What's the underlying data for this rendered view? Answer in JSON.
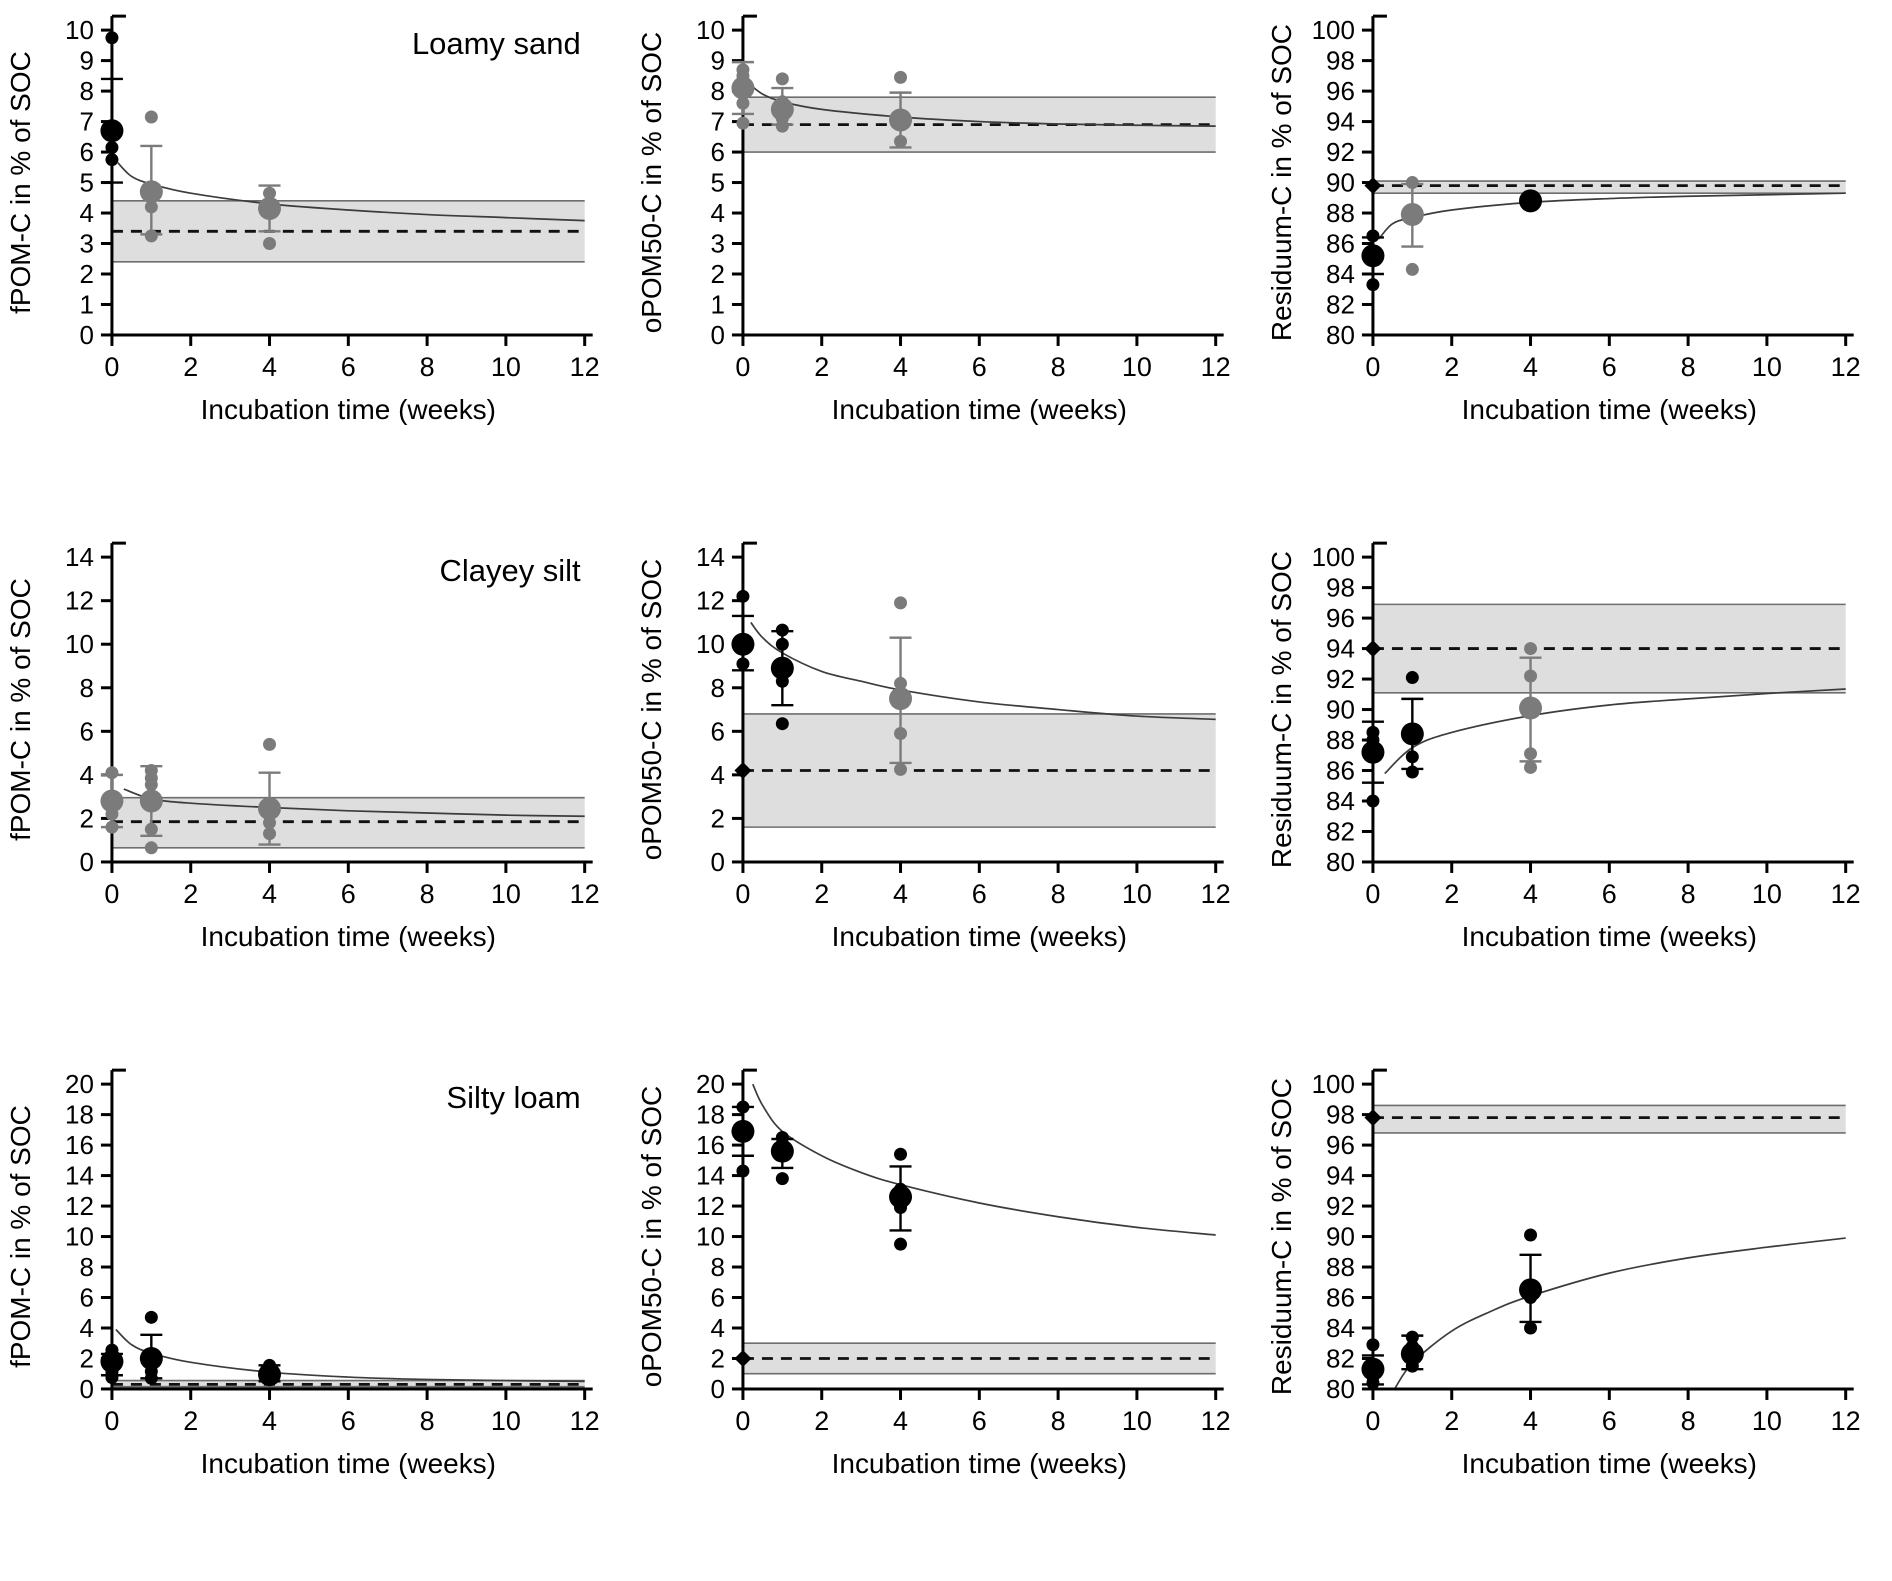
{
  "figure": {
    "xlabel": "Incubation time (weeks)",
    "row_titles": [
      "Loamy sand",
      "Clayey silt",
      "Silty loam"
    ]
  },
  "colors": {
    "point_black": "#000000",
    "point_gray": "#7b7b7b",
    "band_fill": "#dedede",
    "band_edge": "#6e6e6e",
    "curve": "#3c3c3c",
    "dashed_line": "#111111",
    "axis": "#000000"
  },
  "chart_data": [
    {
      "type": "scatter",
      "title": "Loamy sand",
      "xlabel": "Incubation time (weeks)",
      "ylabel": "fPOM-C in % of SOC",
      "xlim": [
        0,
        12
      ],
      "xticks": [
        0,
        2,
        4,
        6,
        8,
        10,
        12
      ],
      "ylim": [
        0,
        10
      ],
      "ytick_step": 1,
      "band": {
        "low": 2.4,
        "high": 4.4
      },
      "dashed_y": 3.4,
      "diamond_at_zero": false,
      "curve": {
        "x": [
          0.15,
          0.5,
          1,
          2,
          4,
          6,
          8,
          10,
          12
        ],
        "y": [
          5.65,
          5.2,
          4.95,
          4.65,
          4.3,
          4.1,
          3.95,
          3.85,
          3.75
        ]
      },
      "groups": [
        {
          "x": 0,
          "color": "black",
          "mean": 6.7,
          "replicates": [
            9.75,
            6.15,
            5.75
          ],
          "error": [
            5.0,
            8.4
          ]
        },
        {
          "x": 1,
          "color": "gray",
          "mean": 4.7,
          "replicates": [
            7.15,
            4.2,
            3.25
          ],
          "error": [
            3.3,
            6.2
          ]
        },
        {
          "x": 4,
          "color": "gray",
          "mean": 4.15,
          "replicates": [
            4.65,
            3.0
          ],
          "error": [
            3.4,
            4.9
          ]
        }
      ]
    },
    {
      "type": "scatter",
      "title": "",
      "xlabel": "Incubation time (weeks)",
      "ylabel": "oPOM50-C in % of SOC",
      "xlim": [
        0,
        12
      ],
      "xticks": [
        0,
        2,
        4,
        6,
        8,
        10,
        12
      ],
      "ylim": [
        0,
        10
      ],
      "ytick_step": 1,
      "band": {
        "low": 6.0,
        "high": 7.8
      },
      "dashed_y": 6.9,
      "diamond_at_zero": false,
      "curve": {
        "x": [
          0.15,
          0.5,
          1,
          2,
          4,
          6,
          8,
          10,
          12
        ],
        "y": [
          8.25,
          7.9,
          7.65,
          7.4,
          7.15,
          7.0,
          6.92,
          6.88,
          6.85
        ]
      },
      "groups": [
        {
          "x": 0,
          "color": "gray",
          "mean": 8.1,
          "replicates": [
            8.7,
            8.5,
            7.6,
            6.95
          ],
          "error": [
            7.25,
            8.95
          ]
        },
        {
          "x": 1,
          "color": "gray",
          "mean": 7.4,
          "replicates": [
            8.4,
            7.65,
            7.1,
            6.85
          ],
          "error": [
            6.9,
            8.1
          ]
        },
        {
          "x": 4,
          "color": "gray",
          "mean": 7.05,
          "replicates": [
            8.45,
            6.35
          ],
          "error": [
            6.15,
            7.95
          ]
        }
      ]
    },
    {
      "type": "scatter",
      "title": "",
      "xlabel": "Incubation time (weeks)",
      "ylabel": "Residuum-C in % of SOC",
      "xlim": [
        0,
        12
      ],
      "xticks": [
        0,
        2,
        4,
        6,
        8,
        10,
        12
      ],
      "ylim": [
        80,
        100
      ],
      "ytick_step": 2,
      "band": {
        "low": 89.3,
        "high": 90.1
      },
      "dashed_y": 89.8,
      "diamond_at_zero": true,
      "curve": {
        "x": [
          0.15,
          0.5,
          1,
          2,
          4,
          6,
          8,
          10,
          12
        ],
        "y": [
          86.3,
          87.3,
          87.7,
          88.2,
          88.7,
          88.95,
          89.1,
          89.2,
          89.3
        ]
      },
      "groups": [
        {
          "x": 0,
          "color": "black",
          "mean": 85.2,
          "replicates": [
            86.5,
            83.3
          ],
          "error": [
            84.0,
            86.4
          ]
        },
        {
          "x": 1,
          "color": "gray",
          "mean": 87.9,
          "replicates": [
            90.0,
            84.3
          ],
          "error": [
            85.8,
            89.9
          ]
        },
        {
          "x": 4,
          "color": "black",
          "mean": 88.8,
          "replicates": [
            89.0,
            88.5
          ],
          "error": null
        }
      ]
    },
    {
      "type": "scatter",
      "title": "Clayey silt",
      "xlabel": "Incubation time (weeks)",
      "ylabel": "fPOM-C in % of SOC",
      "xlim": [
        0,
        12
      ],
      "xticks": [
        0,
        2,
        4,
        6,
        8,
        10,
        12
      ],
      "ylim": [
        0,
        14
      ],
      "ytick_step": 2,
      "band": {
        "low": 0.65,
        "high": 2.95
      },
      "dashed_y": 1.85,
      "diamond_at_zero": false,
      "curve": {
        "x": [
          0.3,
          1,
          2,
          4,
          6,
          8,
          10,
          12
        ],
        "y": [
          3.35,
          2.9,
          2.7,
          2.5,
          2.35,
          2.25,
          2.15,
          2.1
        ]
      },
      "groups": [
        {
          "x": 0,
          "color": "gray",
          "mean": 2.8,
          "replicates": [
            4.1,
            2.2,
            1.6
          ],
          "error": [
            1.6,
            4.0
          ]
        },
        {
          "x": 1,
          "color": "gray",
          "mean": 2.8,
          "replicates": [
            4.2,
            3.85,
            3.55,
            1.5,
            0.65
          ],
          "error": [
            1.2,
            4.4
          ]
        },
        {
          "x": 4,
          "color": "gray",
          "mean": 2.45,
          "replicates": [
            5.4,
            1.8,
            1.3
          ],
          "error": [
            0.8,
            4.1
          ]
        }
      ]
    },
    {
      "type": "scatter",
      "title": "",
      "xlabel": "Incubation time (weeks)",
      "ylabel": "oPOM50-C in % of SOC",
      "xlim": [
        0,
        12
      ],
      "xticks": [
        0,
        2,
        4,
        6,
        8,
        10,
        12
      ],
      "ylim": [
        0,
        14
      ],
      "ytick_step": 2,
      "band": {
        "low": 1.6,
        "high": 6.8
      },
      "dashed_y": 4.2,
      "diamond_at_zero": true,
      "curve": {
        "x": [
          0.2,
          0.5,
          1,
          2,
          3,
          4,
          6,
          8,
          10,
          12
        ],
        "y": [
          11.0,
          10.3,
          9.6,
          8.75,
          8.3,
          7.9,
          7.35,
          7.0,
          6.7,
          6.55
        ]
      },
      "groups": [
        {
          "x": 0,
          "color": "black",
          "mean": 10.0,
          "replicates": [
            12.2,
            9.1
          ],
          "error": [
            8.8,
            11.3
          ]
        },
        {
          "x": 1,
          "color": "black",
          "mean": 8.9,
          "replicates": [
            10.65,
            10.0,
            8.3,
            6.35
          ],
          "error": [
            7.2,
            10.6
          ]
        },
        {
          "x": 4,
          "color": "gray",
          "mean": 7.5,
          "replicates": [
            11.9,
            8.2,
            5.9,
            4.25
          ],
          "error": [
            4.55,
            10.3
          ]
        }
      ]
    },
    {
      "type": "scatter",
      "title": "",
      "xlabel": "Incubation time (weeks)",
      "ylabel": "Residuum-C in % of SOC",
      "xlim": [
        0,
        12
      ],
      "xticks": [
        0,
        2,
        4,
        6,
        8,
        10,
        12
      ],
      "ylim": [
        80,
        100
      ],
      "ytick_step": 2,
      "band": {
        "low": 91.1,
        "high": 96.9
      },
      "dashed_y": 94.0,
      "diamond_at_zero": true,
      "curve": {
        "x": [
          0.3,
          1,
          2,
          4,
          6,
          8,
          10,
          12
        ],
        "y": [
          85.8,
          87.5,
          88.5,
          89.6,
          90.3,
          90.7,
          91.05,
          91.35
        ]
      },
      "groups": [
        {
          "x": 0,
          "color": "black",
          "mean": 87.2,
          "replicates": [
            88.5,
            88.0,
            84.0
          ],
          "error": [
            85.2,
            89.2
          ]
        },
        {
          "x": 1,
          "color": "black",
          "mean": 88.4,
          "replicates": [
            92.1,
            86.9,
            85.9
          ],
          "error": [
            86.1,
            90.7
          ]
        },
        {
          "x": 4,
          "color": "gray",
          "mean": 90.1,
          "replicates": [
            94.0,
            92.2,
            87.1,
            86.2
          ],
          "error": [
            86.6,
            93.4
          ]
        }
      ]
    },
    {
      "type": "scatter",
      "title": "Silty loam",
      "xlabel": "Incubation time (weeks)",
      "ylabel": "fPOM-C in % of SOC",
      "xlim": [
        0,
        12
      ],
      "xticks": [
        0,
        2,
        4,
        6,
        8,
        10,
        12
      ],
      "ylim": [
        0,
        20
      ],
      "ytick_step": 2,
      "band": {
        "low": 0.15,
        "high": 0.55
      },
      "dashed_y": 0.3,
      "diamond_at_zero": false,
      "curve": {
        "x": [
          0.1,
          0.5,
          1,
          2,
          4,
          6,
          8,
          10,
          12
        ],
        "y": [
          3.9,
          2.9,
          2.35,
          1.75,
          1.1,
          0.78,
          0.62,
          0.55,
          0.5
        ]
      },
      "groups": [
        {
          "x": 0,
          "color": "black",
          "mean": 1.8,
          "replicates": [
            2.55,
            2.2,
            1.1,
            0.75
          ],
          "error": [
            0.9,
            2.3
          ]
        },
        {
          "x": 1,
          "color": "black",
          "mean": 2.0,
          "replicates": [
            4.7,
            1.15,
            0.7
          ],
          "error": [
            0.7,
            3.55
          ]
        },
        {
          "x": 4,
          "color": "black",
          "mean": 0.95,
          "replicates": [
            1.55,
            0.6
          ],
          "error": [
            0.5,
            1.55
          ]
        }
      ]
    },
    {
      "type": "scatter",
      "title": "",
      "xlabel": "Incubation time (weeks)",
      "ylabel": "oPOM50-C in % of SOC",
      "xlim": [
        0,
        12
      ],
      "xticks": [
        0,
        2,
        4,
        6,
        8,
        10,
        12
      ],
      "ylim": [
        0,
        20
      ],
      "ytick_step": 2,
      "band": {
        "low": 1.0,
        "high": 3.0
      },
      "dashed_y": 2.0,
      "diamond_at_zero": true,
      "curve": {
        "x": [
          0.25,
          0.5,
          1,
          2,
          3,
          4,
          6,
          8,
          10,
          12
        ],
        "y": [
          20.0,
          18.6,
          16.9,
          15.3,
          14.2,
          13.4,
          12.2,
          11.3,
          10.6,
          10.1
        ]
      },
      "groups": [
        {
          "x": 0,
          "color": "black",
          "mean": 16.9,
          "replicates": [
            18.5,
            14.3
          ],
          "error": [
            15.3,
            18.5
          ]
        },
        {
          "x": 1,
          "color": "black",
          "mean": 15.6,
          "replicates": [
            16.5,
            16.1,
            13.8
          ],
          "error": [
            14.5,
            16.4
          ]
        },
        {
          "x": 4,
          "color": "black",
          "mean": 12.6,
          "replicates": [
            15.4,
            13.1,
            11.9,
            9.5
          ],
          "error": [
            10.4,
            14.6
          ]
        }
      ]
    },
    {
      "type": "scatter",
      "title": "",
      "xlabel": "Incubation time (weeks)",
      "ylabel": "Residuum-C in % of SOC",
      "xlim": [
        0,
        12
      ],
      "xticks": [
        0,
        2,
        4,
        6,
        8,
        10,
        12
      ],
      "ylim": [
        80,
        100
      ],
      "ytick_step": 2,
      "band": {
        "low": 96.8,
        "high": 98.6
      },
      "dashed_y": 97.8,
      "diamond_at_zero": true,
      "curve": {
        "x": [
          0.55,
          1,
          2,
          3,
          4,
          6,
          8,
          10,
          12
        ],
        "y": [
          80.0,
          81.7,
          83.8,
          85.1,
          86.1,
          87.6,
          88.6,
          89.3,
          89.9
        ]
      },
      "groups": [
        {
          "x": 0,
          "color": "black",
          "mean": 81.3,
          "replicates": [
            82.9,
            80.8,
            80.4
          ],
          "error": [
            80.3,
            82.2
          ]
        },
        {
          "x": 1,
          "color": "black",
          "mean": 82.3,
          "replicates": [
            83.4,
            82.8,
            81.5
          ],
          "error": [
            81.3,
            83.5
          ]
        },
        {
          "x": 4,
          "color": "black",
          "mean": 86.5,
          "replicates": [
            90.1,
            86.0,
            84.0
          ],
          "error": [
            84.4,
            88.8
          ]
        }
      ]
    }
  ]
}
